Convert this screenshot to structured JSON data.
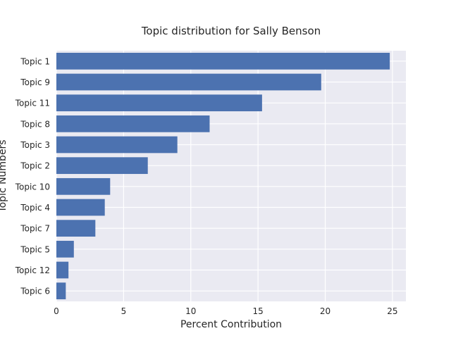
{
  "chart_data": {
    "type": "bar",
    "orientation": "horizontal",
    "title": "Topic distribution for Sally Benson",
    "xlabel": "Percent Contribution",
    "ylabel": "Topic Numbers",
    "categories": [
      "Topic 1",
      "Topic 9",
      "Topic 11",
      "Topic 8",
      "Topic 3",
      "Topic 2",
      "Topic 10",
      "Topic 4",
      "Topic 7",
      "Topic 5",
      "Topic 12",
      "Topic 6"
    ],
    "values": [
      24.8,
      19.7,
      15.3,
      11.4,
      9.0,
      6.8,
      4.0,
      3.6,
      2.9,
      1.3,
      0.9,
      0.7
    ],
    "xlim": [
      0,
      26
    ],
    "xticks": [
      0,
      5,
      10,
      15,
      20,
      25
    ],
    "grid": true,
    "colors": {
      "bar": "#4c72b0",
      "plot_bg": "#eaeaf2",
      "grid": "#ffffff"
    }
  }
}
